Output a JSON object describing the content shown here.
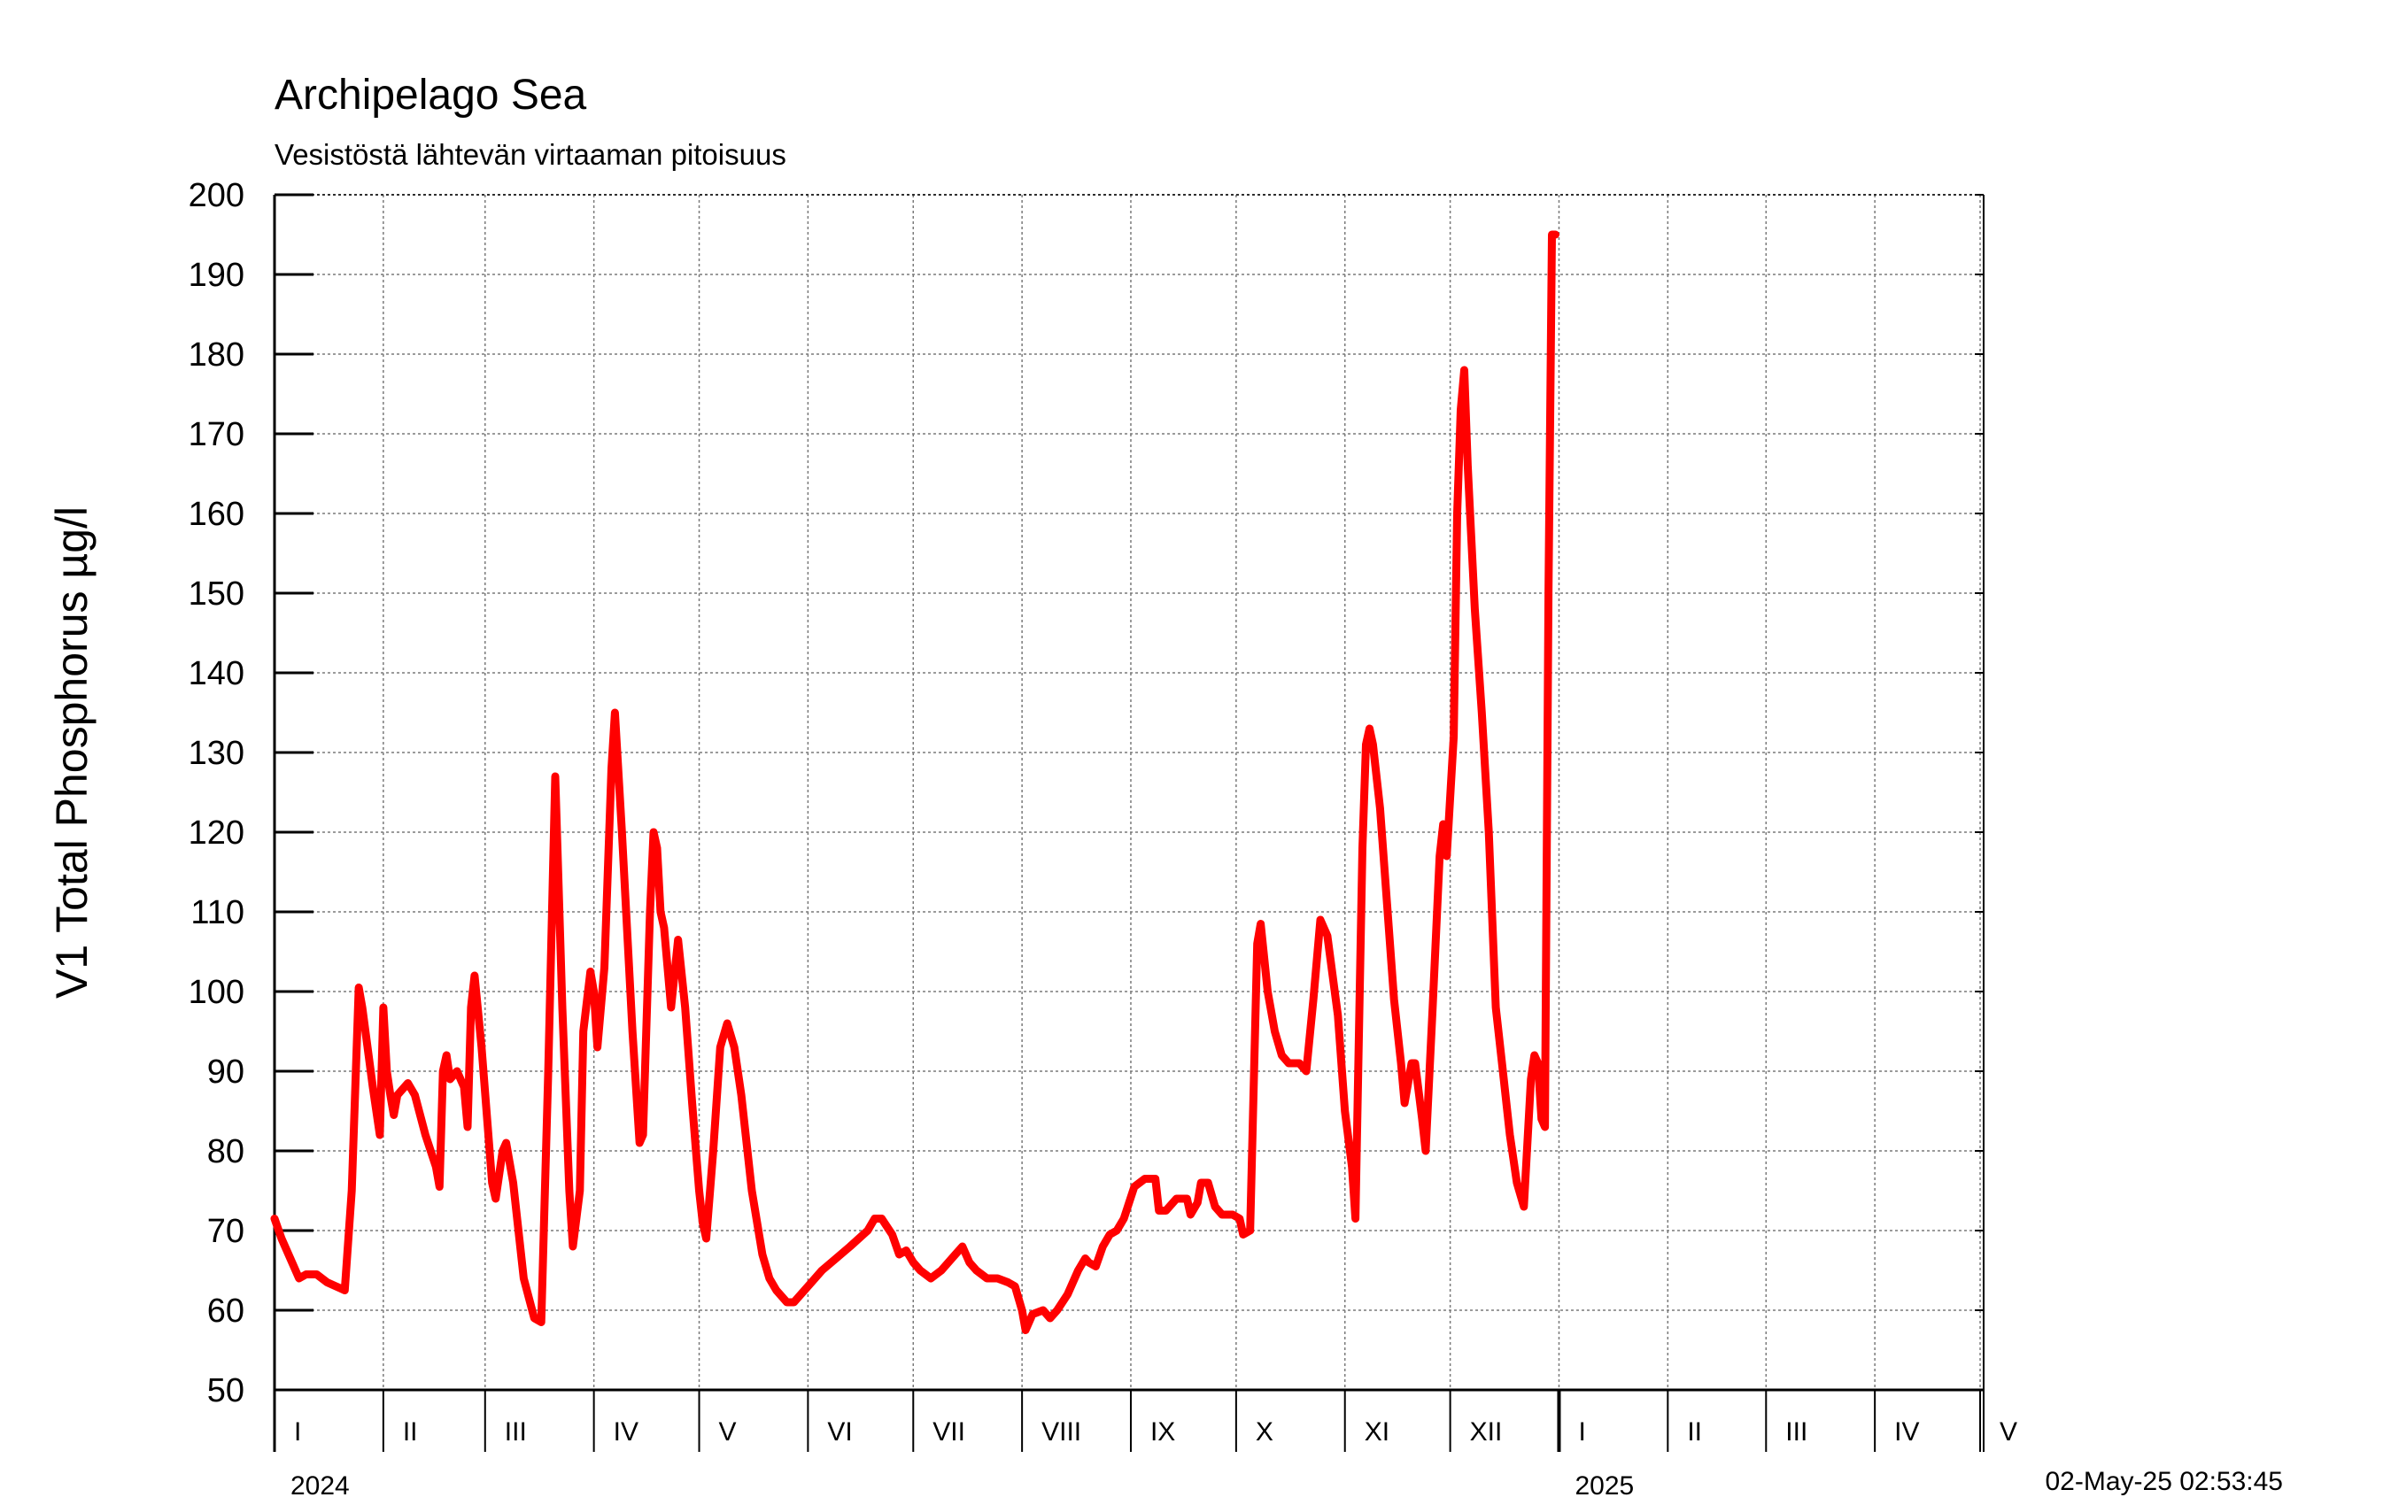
{
  "chart_data": {
    "type": "line",
    "title": "Archipelago Sea",
    "subtitle": "Vesistöstä lähtevän virtaaman pitoisuus",
    "ylabel": "V1 Total Phosphorus µg/l",
    "ylim": [
      50,
      200
    ],
    "yticks": [
      50,
      60,
      70,
      80,
      90,
      100,
      110,
      120,
      130,
      140,
      150,
      160,
      170,
      180,
      190,
      200
    ],
    "xlim": [
      "2024-01-01",
      "2025-05-02"
    ],
    "grid": true,
    "series_color": "#ff0000",
    "month_labels": [
      {
        "label": "I",
        "date": "2024-01-01"
      },
      {
        "label": "II",
        "date": "2024-02-01"
      },
      {
        "label": "III",
        "date": "2024-03-01"
      },
      {
        "label": "IV",
        "date": "2024-04-01"
      },
      {
        "label": "V",
        "date": "2024-05-01"
      },
      {
        "label": "VI",
        "date": "2024-06-01"
      },
      {
        "label": "VII",
        "date": "2024-07-01"
      },
      {
        "label": "VIII",
        "date": "2024-08-01"
      },
      {
        "label": "IX",
        "date": "2024-09-01"
      },
      {
        "label": "X",
        "date": "2024-10-01"
      },
      {
        "label": "XI",
        "date": "2024-11-01"
      },
      {
        "label": "XII",
        "date": "2024-12-01"
      },
      {
        "label": "I",
        "date": "2025-01-01"
      },
      {
        "label": "II",
        "date": "2025-02-01"
      },
      {
        "label": "III",
        "date": "2025-03-01"
      },
      {
        "label": "IV",
        "date": "2025-04-01"
      },
      {
        "label": "V",
        "date": "2025-05-01"
      }
    ],
    "year_labels": [
      {
        "label": "2024",
        "date": "2024-01-01"
      },
      {
        "label": "2025",
        "date": "2025-01-01"
      }
    ],
    "year_boundary": "2025-01-01",
    "timestamp": "02-May-25 02:53:45",
    "series": [
      {
        "points": [
          [
            "2024-01-01",
            71.5
          ],
          [
            "2024-01-03",
            69
          ],
          [
            "2024-01-06",
            66
          ],
          [
            "2024-01-08",
            64
          ],
          [
            "2024-01-10",
            64.5
          ],
          [
            "2024-01-13",
            64.5
          ],
          [
            "2024-01-16",
            63.5
          ],
          [
            "2024-01-21",
            62.5
          ],
          [
            "2024-01-23",
            75
          ],
          [
            "2024-01-25",
            100.5
          ],
          [
            "2024-01-26",
            98
          ],
          [
            "2024-01-29",
            88
          ],
          [
            "2024-01-31",
            82
          ],
          [
            "2024-02-01",
            98
          ],
          [
            "2024-02-02",
            90
          ],
          [
            "2024-02-03",
            87
          ],
          [
            "2024-02-04",
            84.5
          ],
          [
            "2024-02-05",
            87
          ],
          [
            "2024-02-08",
            88.5
          ],
          [
            "2024-02-10",
            87
          ],
          [
            "2024-02-13",
            82
          ],
          [
            "2024-02-16",
            78
          ],
          [
            "2024-02-17",
            75.5
          ],
          [
            "2024-02-18",
            90
          ],
          [
            "2024-02-19",
            92
          ],
          [
            "2024-02-20",
            89
          ],
          [
            "2024-02-22",
            90
          ],
          [
            "2024-02-24",
            88
          ],
          [
            "2024-02-25",
            83
          ],
          [
            "2024-02-26",
            98
          ],
          [
            "2024-02-27",
            102
          ],
          [
            "2024-02-29",
            93
          ],
          [
            "2024-03-03",
            76
          ],
          [
            "2024-03-04",
            74
          ],
          [
            "2024-03-06",
            80
          ],
          [
            "2024-03-07",
            81
          ],
          [
            "2024-03-09",
            76
          ],
          [
            "2024-03-12",
            64
          ],
          [
            "2024-03-15",
            59
          ],
          [
            "2024-03-17",
            58.5
          ],
          [
            "2024-03-19",
            90
          ],
          [
            "2024-03-21",
            127
          ],
          [
            "2024-03-23",
            98
          ],
          [
            "2024-03-25",
            75
          ],
          [
            "2024-03-26",
            68
          ],
          [
            "2024-03-28",
            75
          ],
          [
            "2024-03-29",
            95
          ],
          [
            "2024-03-31",
            102.5
          ],
          [
            "2024-04-01",
            100
          ],
          [
            "2024-04-02",
            93
          ],
          [
            "2024-04-04",
            103
          ],
          [
            "2024-04-06",
            128
          ],
          [
            "2024-04-07",
            135
          ],
          [
            "2024-04-09",
            120
          ],
          [
            "2024-04-12",
            95
          ],
          [
            "2024-04-14",
            81
          ],
          [
            "2024-04-15",
            82
          ],
          [
            "2024-04-17",
            110
          ],
          [
            "2024-04-18",
            120
          ],
          [
            "2024-04-19",
            118
          ],
          [
            "2024-04-20",
            110
          ],
          [
            "2024-04-21",
            108
          ],
          [
            "2024-04-23",
            98
          ],
          [
            "2024-04-25",
            106.5
          ],
          [
            "2024-04-27",
            98
          ],
          [
            "2024-04-29",
            86
          ],
          [
            "2024-05-01",
            75
          ],
          [
            "2024-05-02",
            71
          ],
          [
            "2024-05-03",
            69
          ],
          [
            "2024-05-05",
            80
          ],
          [
            "2024-05-07",
            93
          ],
          [
            "2024-05-09",
            96
          ],
          [
            "2024-05-11",
            93
          ],
          [
            "2024-05-13",
            87
          ],
          [
            "2024-05-16",
            75
          ],
          [
            "2024-05-19",
            67
          ],
          [
            "2024-05-21",
            64
          ],
          [
            "2024-05-23",
            62.5
          ],
          [
            "2024-05-26",
            61
          ],
          [
            "2024-05-28",
            61
          ],
          [
            "2024-06-01",
            63
          ],
          [
            "2024-06-05",
            65
          ],
          [
            "2024-06-09",
            66.5
          ],
          [
            "2024-06-13",
            68
          ],
          [
            "2024-06-18",
            70
          ],
          [
            "2024-06-20",
            71.5
          ],
          [
            "2024-06-22",
            71.5
          ],
          [
            "2024-06-25",
            69.5
          ],
          [
            "2024-06-27",
            67
          ],
          [
            "2024-06-29",
            67.5
          ],
          [
            "2024-07-01",
            66
          ],
          [
            "2024-07-03",
            65
          ],
          [
            "2024-07-06",
            64
          ],
          [
            "2024-07-09",
            65
          ],
          [
            "2024-07-11",
            66
          ],
          [
            "2024-07-13",
            67
          ],
          [
            "2024-07-15",
            68
          ],
          [
            "2024-07-17",
            66
          ],
          [
            "2024-07-19",
            65
          ],
          [
            "2024-07-22",
            64
          ],
          [
            "2024-07-25",
            64
          ],
          [
            "2024-07-28",
            63.5
          ],
          [
            "2024-07-30",
            63
          ],
          [
            "2024-08-01",
            60
          ],
          [
            "2024-08-02",
            57.5
          ],
          [
            "2024-08-04",
            59.5
          ],
          [
            "2024-08-07",
            60
          ],
          [
            "2024-08-09",
            59
          ],
          [
            "2024-08-11",
            60
          ],
          [
            "2024-08-14",
            62
          ],
          [
            "2024-08-17",
            65
          ],
          [
            "2024-08-19",
            66.5
          ],
          [
            "2024-08-20",
            66
          ],
          [
            "2024-08-22",
            65.5
          ],
          [
            "2024-08-24",
            68
          ],
          [
            "2024-08-26",
            69.5
          ],
          [
            "2024-08-28",
            70
          ],
          [
            "2024-08-30",
            71.5
          ],
          [
            "2024-09-02",
            75.5
          ],
          [
            "2024-09-05",
            76.5
          ],
          [
            "2024-09-08",
            76.5
          ],
          [
            "2024-09-09",
            72.5
          ],
          [
            "2024-09-11",
            72.5
          ],
          [
            "2024-09-14",
            74
          ],
          [
            "2024-09-17",
            74
          ],
          [
            "2024-09-18",
            72
          ],
          [
            "2024-09-20",
            73.5
          ],
          [
            "2024-09-21",
            76
          ],
          [
            "2024-09-23",
            76
          ],
          [
            "2024-09-25",
            73
          ],
          [
            "2024-09-27",
            72
          ],
          [
            "2024-09-30",
            72
          ],
          [
            "2024-10-02",
            71.5
          ],
          [
            "2024-10-03",
            69.5
          ],
          [
            "2024-10-05",
            70
          ],
          [
            "2024-10-07",
            106
          ],
          [
            "2024-10-08",
            108.5
          ],
          [
            "2024-10-10",
            100
          ],
          [
            "2024-10-12",
            95
          ],
          [
            "2024-10-14",
            92
          ],
          [
            "2024-10-16",
            91
          ],
          [
            "2024-10-19",
            91
          ],
          [
            "2024-10-21",
            90
          ],
          [
            "2024-10-23",
            99
          ],
          [
            "2024-10-25",
            109
          ],
          [
            "2024-10-27",
            107
          ],
          [
            "2024-10-30",
            97
          ],
          [
            "2024-11-01",
            85
          ],
          [
            "2024-11-03",
            78
          ],
          [
            "2024-11-04",
            71.5
          ],
          [
            "2024-11-06",
            118
          ],
          [
            "2024-11-07",
            131
          ],
          [
            "2024-11-08",
            133
          ],
          [
            "2024-11-09",
            131
          ],
          [
            "2024-11-11",
            123
          ],
          [
            "2024-11-13",
            111
          ],
          [
            "2024-11-15",
            99
          ],
          [
            "2024-11-17",
            91
          ],
          [
            "2024-11-18",
            86
          ],
          [
            "2024-11-20",
            91
          ],
          [
            "2024-11-21",
            91
          ],
          [
            "2024-11-23",
            84
          ],
          [
            "2024-11-24",
            80
          ],
          [
            "2024-11-26",
            98
          ],
          [
            "2024-11-28",
            117
          ],
          [
            "2024-11-29",
            121
          ],
          [
            "2024-11-30",
            117
          ],
          [
            "2024-12-02",
            132
          ],
          [
            "2024-12-03",
            160
          ],
          [
            "2024-12-04",
            173
          ],
          [
            "2024-12-05",
            178
          ],
          [
            "2024-12-06",
            166
          ],
          [
            "2024-12-08",
            148
          ],
          [
            "2024-12-10",
            135
          ],
          [
            "2024-12-12",
            120
          ],
          [
            "2024-12-14",
            98
          ],
          [
            "2024-12-16",
            90
          ],
          [
            "2024-12-18",
            82
          ],
          [
            "2024-12-20",
            76
          ],
          [
            "2024-12-22",
            73
          ],
          [
            "2024-12-24",
            89
          ],
          [
            "2024-12-25",
            92
          ],
          [
            "2024-12-26",
            91
          ],
          [
            "2024-12-27",
            84
          ],
          [
            "2024-12-28",
            83
          ],
          [
            "2024-12-29",
            150
          ],
          [
            "2024-12-30",
            195
          ],
          [
            "2024-12-31",
            195
          ]
        ]
      }
    ]
  }
}
